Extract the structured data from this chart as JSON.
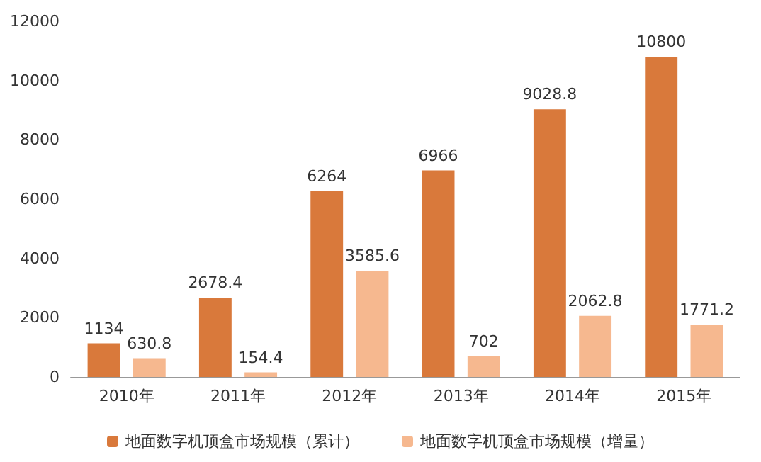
{
  "chart_data": {
    "type": "bar",
    "categories": [
      "2010年",
      "2011年",
      "2012年",
      "2013年",
      "2014年",
      "2015年"
    ],
    "series": [
      {
        "name": "地面数字机顶盒市场规模（累计）",
        "color": "#d9793b",
        "values": [
          1134,
          2678.4,
          6264,
          6966,
          9028.8,
          10800
        ]
      },
      {
        "name": "地面数字机顶盒市场规模（增量）",
        "color": "#f6b88f",
        "values": [
          630.8,
          154.4,
          3585.6,
          702,
          2062.8,
          1771.2
        ]
      }
    ],
    "ylim": [
      0,
      12000
    ],
    "yticks": [
      0,
      2000,
      4000,
      6000,
      8000,
      10000,
      12000
    ],
    "data_labels": true,
    "grid": false,
    "legend": "bottom"
  }
}
